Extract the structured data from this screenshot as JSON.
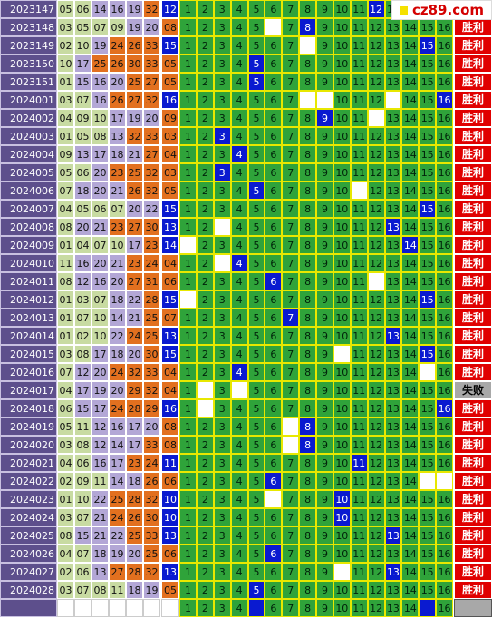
{
  "logo": "cz89.com",
  "numbers": [
    1,
    2,
    3,
    4,
    5,
    6,
    7,
    8,
    9,
    10,
    11,
    12,
    13,
    14,
    15,
    16
  ],
  "rows": [
    {
      "period": "2023147",
      "reds": [
        "05",
        "06",
        "14",
        "16",
        "19",
        "32"
      ],
      "blue": "12",
      "blank": [],
      "result": null
    },
    {
      "period": "2023148",
      "reds": [
        "03",
        "05",
        "07",
        "09",
        "19",
        "20"
      ],
      "blue": "08",
      "blank": [
        6
      ],
      "result": "胜利"
    },
    {
      "period": "2023149",
      "reds": [
        "02",
        "10",
        "19",
        "24",
        "26",
        "33"
      ],
      "blue": "15",
      "blank": [
        8
      ],
      "result": "胜利"
    },
    {
      "period": "2023150",
      "reds": [
        "10",
        "17",
        "25",
        "26",
        "30",
        "33"
      ],
      "blue": "05",
      "blank": [],
      "result": "胜利"
    },
    {
      "period": "2023151",
      "reds": [
        "01",
        "15",
        "16",
        "20",
        "25",
        "27"
      ],
      "blue": "05",
      "blank": [],
      "result": "胜利"
    },
    {
      "period": "2024001",
      "reds": [
        "03",
        "07",
        "16",
        "26",
        "27",
        "32"
      ],
      "blue": "16",
      "blank": [
        8,
        9,
        13
      ],
      "result": "胜利"
    },
    {
      "period": "2024002",
      "reds": [
        "04",
        "09",
        "10",
        "17",
        "19",
        "20"
      ],
      "blue": "09",
      "blank": [
        12
      ],
      "result": "胜利"
    },
    {
      "period": "2024003",
      "reds": [
        "01",
        "05",
        "08",
        "13",
        "32",
        "33"
      ],
      "blue": "03",
      "blank": [],
      "result": "胜利"
    },
    {
      "period": "2024004",
      "reds": [
        "09",
        "13",
        "17",
        "18",
        "21",
        "27"
      ],
      "blue": "04",
      "blank": [],
      "result": "胜利"
    },
    {
      "period": "2024005",
      "reds": [
        "05",
        "06",
        "20",
        "23",
        "25",
        "32"
      ],
      "blue": "03",
      "blank": [],
      "result": "胜利"
    },
    {
      "period": "2024006",
      "reds": [
        "07",
        "18",
        "20",
        "21",
        "26",
        "32"
      ],
      "blue": "05",
      "blank": [
        11
      ],
      "result": "胜利"
    },
    {
      "period": "2024007",
      "reds": [
        "04",
        "05",
        "06",
        "07",
        "20",
        "22"
      ],
      "blue": "15",
      "blank": [],
      "result": "胜利"
    },
    {
      "period": "2024008",
      "reds": [
        "08",
        "20",
        "21",
        "23",
        "27",
        "30"
      ],
      "blue": "13",
      "blank": [
        3
      ],
      "result": "胜利"
    },
    {
      "period": "2024009",
      "reds": [
        "01",
        "04",
        "07",
        "10",
        "17",
        "23"
      ],
      "blue": "14",
      "blank": [
        1
      ],
      "result": "胜利"
    },
    {
      "period": "2024010",
      "reds": [
        "11",
        "16",
        "20",
        "21",
        "23",
        "24"
      ],
      "blue": "04",
      "blank": [
        3
      ],
      "result": "胜利"
    },
    {
      "period": "2024011",
      "reds": [
        "08",
        "12",
        "16",
        "20",
        "27",
        "31"
      ],
      "blue": "06",
      "blank": [
        12
      ],
      "result": "胜利"
    },
    {
      "period": "2024012",
      "reds": [
        "01",
        "03",
        "07",
        "18",
        "22",
        "28"
      ],
      "blue": "15",
      "blank": [
        1
      ],
      "result": "胜利"
    },
    {
      "period": "2024013",
      "reds": [
        "01",
        "07",
        "10",
        "14",
        "21",
        "25"
      ],
      "blue": "07",
      "blank": [],
      "result": "胜利"
    },
    {
      "period": "2024014",
      "reds": [
        "01",
        "02",
        "10",
        "22",
        "24",
        "25"
      ],
      "blue": "13",
      "blank": [],
      "result": "胜利"
    },
    {
      "period": "2024015",
      "reds": [
        "03",
        "08",
        "17",
        "18",
        "20",
        "30"
      ],
      "blue": "15",
      "blank": [
        10
      ],
      "result": "胜利"
    },
    {
      "period": "2024016",
      "reds": [
        "07",
        "12",
        "20",
        "24",
        "32",
        "33"
      ],
      "blue": "04",
      "blank": [
        15
      ],
      "result": "胜利"
    },
    {
      "period": "2024017",
      "reds": [
        "04",
        "17",
        "19",
        "20",
        "29",
        "32"
      ],
      "blue": "04",
      "blank": [
        2,
        4
      ],
      "result": "失败"
    },
    {
      "period": "2024018",
      "reds": [
        "06",
        "15",
        "17",
        "24",
        "28",
        "29"
      ],
      "blue": "16",
      "blank": [
        2
      ],
      "result": "胜利"
    },
    {
      "period": "2024019",
      "reds": [
        "05",
        "11",
        "12",
        "16",
        "17",
        "20"
      ],
      "blue": "08",
      "blank": [
        7
      ],
      "result": "胜利"
    },
    {
      "period": "2024020",
      "reds": [
        "03",
        "08",
        "12",
        "14",
        "17",
        "33"
      ],
      "blue": "08",
      "blank": [
        7
      ],
      "result": "胜利"
    },
    {
      "period": "2024021",
      "reds": [
        "04",
        "06",
        "16",
        "17",
        "23",
        "24"
      ],
      "blue": "11",
      "blank": [],
      "result": "胜利"
    },
    {
      "period": "2024022",
      "reds": [
        "02",
        "09",
        "11",
        "14",
        "18",
        "26"
      ],
      "blue": "06",
      "blank": [
        15,
        16
      ],
      "result": "胜利"
    },
    {
      "period": "2024023",
      "reds": [
        "01",
        "10",
        "22",
        "25",
        "28",
        "32"
      ],
      "blue": "10",
      "blank": [
        6
      ],
      "result": "胜利"
    },
    {
      "period": "2024024",
      "reds": [
        "03",
        "07",
        "21",
        "24",
        "26",
        "30"
      ],
      "blue": "10",
      "blank": [],
      "result": "胜利"
    },
    {
      "period": "2024025",
      "reds": [
        "08",
        "15",
        "21",
        "22",
        "25",
        "33"
      ],
      "blue": "13",
      "blank": [],
      "result": "胜利"
    },
    {
      "period": "2024026",
      "reds": [
        "04",
        "07",
        "18",
        "19",
        "20",
        "25"
      ],
      "blue": "06",
      "blank": [],
      "result": "胜利"
    },
    {
      "period": "2024027",
      "reds": [
        "02",
        "06",
        "13",
        "27",
        "28",
        "32"
      ],
      "blue": "13",
      "blank": [
        10
      ],
      "result": "胜利"
    },
    {
      "period": "2024028",
      "reds": [
        "03",
        "07",
        "08",
        "11",
        "18",
        "19"
      ],
      "blue": "05",
      "blank": [],
      "result": "胜利"
    }
  ],
  "next_marks": [
    5,
    15
  ]
}
